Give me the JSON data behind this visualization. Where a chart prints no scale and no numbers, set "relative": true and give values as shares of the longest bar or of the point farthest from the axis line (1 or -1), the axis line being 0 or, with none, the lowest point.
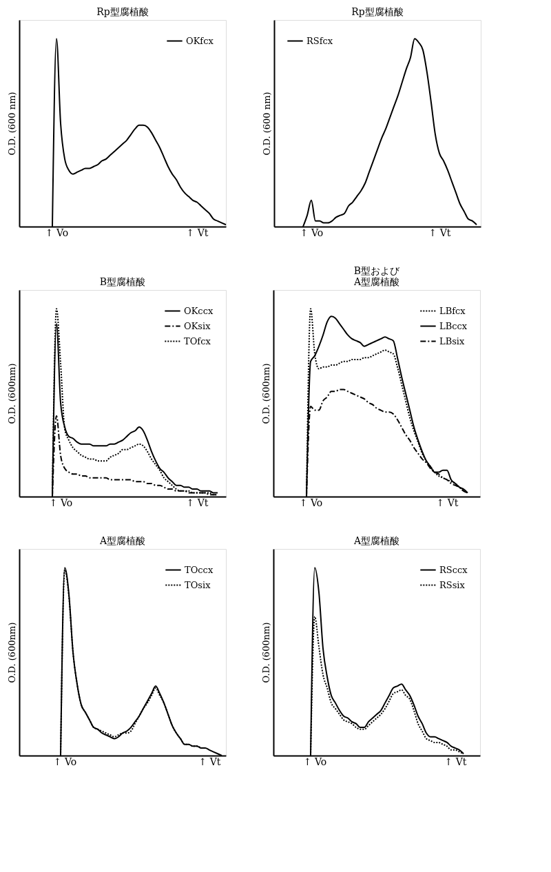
{
  "chart_data": [
    {
      "type": "line",
      "title": "Rp型腐植酸",
      "ylabel": "O.D. (600 nm)",
      "relative": true,
      "tick_labels": "x",
      "grid": false,
      "legend": "top right",
      "categories": [
        null,
        null,
        null,
        null,
        null,
        null,
        null,
        null,
        null,
        "↑ Vo",
        null,
        null,
        null,
        null,
        null,
        null,
        null,
        null,
        null,
        null,
        null,
        null,
        null,
        null,
        null,
        null,
        null,
        null,
        null,
        null,
        null,
        null,
        null,
        null,
        null,
        null,
        null,
        null,
        null,
        null,
        null,
        null,
        null,
        "↑ Vt",
        null,
        null,
        null,
        null,
        null,
        null,
        null
      ],
      "series": [
        {
          "name": "OKfcx",
          "color": "#000000",
          "line_style": "solid",
          "values": [
            null,
            null,
            null,
            null,
            null,
            null,
            null,
            null,
            0,
            1,
            0.55,
            0.36,
            0.3,
            0.28,
            0.29,
            0.3,
            0.31,
            0.31,
            0.32,
            0.33,
            0.35,
            0.36,
            0.38,
            0.4,
            0.42,
            0.44,
            0.46,
            0.49,
            0.52,
            0.54,
            0.54,
            0.53,
            0.5,
            0.46,
            0.42,
            0.37,
            0.32,
            0.28,
            0.25,
            0.21,
            0.18,
            0.16,
            0.14,
            0.13,
            0.11,
            0.09,
            0.07,
            0.04,
            0.03,
            0.02,
            0.01
          ]
        }
      ]
    },
    {
      "type": "line",
      "title": "Rp型腐植酸",
      "ylabel": "O.D. (600 nm)",
      "relative": true,
      "tick_labels": "x",
      "grid": false,
      "legend": "top left",
      "categories": [
        null,
        null,
        null,
        null,
        null,
        null,
        null,
        null,
        null,
        "↑ Vo",
        null,
        null,
        null,
        null,
        null,
        null,
        null,
        null,
        null,
        null,
        null,
        null,
        null,
        null,
        null,
        null,
        null,
        null,
        null,
        null,
        null,
        null,
        null,
        null,
        null,
        null,
        null,
        null,
        null,
        null,
        "↑ Vt",
        null,
        null,
        null,
        null,
        null,
        null,
        null,
        null,
        null,
        null
      ],
      "series": [
        {
          "name": "RSfcx",
          "color": "#000000",
          "line_style": "solid",
          "values": [
            null,
            null,
            null,
            null,
            null,
            null,
            null,
            0,
            0.06,
            0.14,
            0.03,
            0.03,
            0.02,
            0.02,
            0.03,
            0.05,
            0.06,
            0.07,
            0.11,
            0.13,
            0.16,
            0.19,
            0.23,
            0.29,
            0.35,
            0.41,
            0.47,
            0.52,
            0.58,
            0.64,
            0.7,
            0.77,
            0.84,
            0.9,
            1,
            0.98,
            0.94,
            0.82,
            0.66,
            0.49,
            0.39,
            0.35,
            0.3,
            0.24,
            0.18,
            0.12,
            0.08,
            0.04,
            0.03,
            0.01,
            null
          ]
        }
      ]
    },
    {
      "type": "line",
      "title": "B型腐植酸",
      "ylabel": "O.D. (600nm)",
      "relative": true,
      "tick_labels": "x",
      "grid": false,
      "legend": "top right",
      "categories": [
        null,
        null,
        null,
        null,
        null,
        null,
        null,
        null,
        null,
        null,
        "↑ Vo",
        null,
        null,
        null,
        null,
        null,
        null,
        null,
        null,
        null,
        null,
        null,
        null,
        null,
        null,
        null,
        null,
        null,
        null,
        null,
        null,
        null,
        null,
        null,
        null,
        null,
        null,
        null,
        null,
        null,
        null,
        null,
        null,
        "↑ Vt",
        null,
        null,
        null,
        null,
        null,
        null,
        null
      ],
      "series": [
        {
          "name": "OKccx",
          "color": "#000000",
          "line_style": "solid",
          "values": [
            null,
            null,
            null,
            null,
            null,
            null,
            null,
            null,
            0,
            0.92,
            0.5,
            0.37,
            0.32,
            0.31,
            0.29,
            0.28,
            0.28,
            0.28,
            0.27,
            0.27,
            0.27,
            0.27,
            0.28,
            0.28,
            0.29,
            0.3,
            0.32,
            0.34,
            0.35,
            0.37,
            0.35,
            0.3,
            0.24,
            0.19,
            0.15,
            0.13,
            0.1,
            0.08,
            0.06,
            0.06,
            0.05,
            0.05,
            0.04,
            0.04,
            0.03,
            0.03,
            0.03,
            0.02,
            0.02,
            null,
            null
          ]
        },
        {
          "name": "OKsix",
          "color": "#000000",
          "line_style": "dashdot",
          "values": [
            null,
            null,
            null,
            null,
            null,
            null,
            null,
            null,
            0,
            0.43,
            0.22,
            0.15,
            0.13,
            0.12,
            0.12,
            0.11,
            0.11,
            0.1,
            0.1,
            0.1,
            0.1,
            0.1,
            0.09,
            0.09,
            0.09,
            0.09,
            0.09,
            0.09,
            0.08,
            0.08,
            0.08,
            0.07,
            0.07,
            0.06,
            0.06,
            0.05,
            0.04,
            0.04,
            0.03,
            0.03,
            0.03,
            0.02,
            0.02,
            0.02,
            0.02,
            0.02,
            0.01,
            0.01,
            0.01,
            null,
            null
          ]
        },
        {
          "name": "TOfcx",
          "color": "#000000",
          "line_style": "dotted",
          "values": [
            null,
            null,
            null,
            null,
            null,
            null,
            null,
            null,
            0,
            1,
            0.71,
            0.36,
            0.3,
            0.26,
            0.24,
            0.22,
            0.21,
            0.2,
            0.2,
            0.19,
            0.19,
            0.19,
            0.21,
            0.22,
            0.23,
            0.25,
            0.25,
            0.26,
            0.27,
            0.28,
            0.27,
            0.24,
            0.2,
            0.17,
            0.14,
            0.1,
            0.08,
            0.06,
            0.04,
            0.03,
            0.03,
            0.03,
            0.02,
            0.02,
            0.02,
            0.02,
            0.02,
            0.01,
            0.01,
            null,
            null
          ]
        }
      ]
    },
    {
      "type": "line",
      "title": "B型および\nA型腐植酸",
      "ylabel": "O.D. (600nm)",
      "relative": true,
      "tick_labels": "x",
      "grid": false,
      "legend": "top right",
      "categories": [
        null,
        null,
        null,
        null,
        null,
        null,
        null,
        null,
        null,
        "↑ Vo",
        null,
        null,
        null,
        null,
        null,
        null,
        null,
        null,
        null,
        null,
        null,
        null,
        null,
        null,
        null,
        null,
        null,
        null,
        null,
        null,
        null,
        null,
        null,
        null,
        null,
        null,
        null,
        null,
        null,
        null,
        null,
        null,
        "↑ Vt",
        null,
        null,
        null,
        null,
        null,
        null,
        null,
        null
      ],
      "series": [
        {
          "name": "LBfcx",
          "color": "#000000",
          "line_style": "dotted",
          "values": [
            null,
            null,
            null,
            null,
            null,
            null,
            null,
            null,
            0,
            1,
            0.76,
            0.68,
            0.69,
            0.69,
            0.7,
            0.7,
            0.71,
            0.72,
            0.72,
            0.73,
            0.73,
            0.73,
            0.74,
            0.74,
            0.75,
            0.76,
            0.77,
            0.78,
            0.77,
            0.76,
            0.69,
            0.6,
            0.51,
            0.42,
            0.35,
            0.29,
            0.23,
            0.19,
            0.16,
            0.13,
            0.11,
            0.1,
            0.09,
            0.08,
            0.07,
            0.05,
            0.03,
            null,
            null,
            null,
            null
          ]
        },
        {
          "name": "LBccx",
          "color": "#000000",
          "line_style": "solid",
          "values": [
            null,
            null,
            null,
            null,
            null,
            null,
            null,
            null,
            0,
            0.72,
            0.75,
            0.8,
            0.86,
            0.93,
            0.96,
            0.95,
            0.92,
            0.89,
            0.86,
            0.84,
            0.83,
            0.82,
            0.8,
            0.81,
            0.82,
            0.83,
            0.84,
            0.85,
            0.84,
            0.83,
            0.74,
            0.64,
            0.55,
            0.46,
            0.37,
            0.3,
            0.24,
            0.19,
            0.16,
            0.13,
            0.13,
            0.14,
            0.14,
            0.09,
            0.07,
            0.05,
            0.04,
            0.02,
            null,
            null,
            null
          ]
        },
        {
          "name": "LBsix",
          "color": "#000000",
          "line_style": "dashdot",
          "values": [
            null,
            null,
            null,
            null,
            null,
            null,
            null,
            null,
            0,
            0.48,
            0.46,
            0.46,
            0.51,
            0.53,
            0.56,
            0.56,
            0.57,
            0.57,
            0.56,
            0.55,
            0.54,
            0.53,
            0.52,
            0.5,
            0.49,
            0.47,
            0.46,
            0.45,
            0.45,
            0.44,
            0.41,
            0.37,
            0.33,
            0.3,
            0.26,
            0.23,
            0.2,
            0.18,
            0.15,
            0.13,
            0.12,
            0.1,
            0.09,
            0.07,
            0.06,
            0.05,
            0.03,
            0.02,
            null,
            null,
            null
          ]
        }
      ]
    },
    {
      "type": "line",
      "title": "A型腐植酸",
      "ylabel": "O.D. (600nm)",
      "relative": true,
      "tick_labels": "x",
      "grid": false,
      "legend": "top right",
      "categories": [
        null,
        null,
        null,
        null,
        null,
        null,
        null,
        null,
        null,
        null,
        null,
        "↑ Vo",
        null,
        null,
        null,
        null,
        null,
        null,
        null,
        null,
        null,
        null,
        null,
        null,
        null,
        null,
        null,
        null,
        null,
        null,
        null,
        null,
        null,
        null,
        null,
        null,
        null,
        null,
        null,
        null,
        null,
        null,
        null,
        null,
        null,
        null,
        "↑ Vt",
        null,
        null,
        null,
        null
      ],
      "series": [
        {
          "name": "TOccx",
          "color": "#000000",
          "line_style": "solid",
          "values": [
            null,
            null,
            null,
            null,
            null,
            null,
            null,
            null,
            null,
            null,
            0,
            1,
            0.86,
            0.55,
            0.38,
            0.27,
            0.23,
            0.19,
            0.15,
            0.14,
            0.12,
            0.11,
            0.1,
            0.09,
            0.1,
            0.12,
            0.13,
            0.15,
            0.18,
            0.21,
            0.25,
            0.29,
            0.33,
            0.37,
            0.33,
            0.28,
            0.22,
            0.16,
            0.12,
            0.09,
            0.06,
            0.06,
            0.05,
            0.05,
            0.04,
            0.04,
            0.03,
            0.02,
            0.01,
            0,
            null
          ]
        },
        {
          "name": "TOsix",
          "color": "#000000",
          "line_style": "dotted",
          "values": [
            null,
            null,
            null,
            null,
            null,
            null,
            null,
            null,
            null,
            null,
            0,
            0.99,
            0.85,
            0.55,
            0.38,
            0.27,
            0.23,
            0.19,
            0.15,
            0.14,
            0.13,
            0.12,
            0.11,
            0.1,
            0.11,
            0.12,
            0.12,
            0.13,
            0.17,
            0.21,
            0.25,
            0.28,
            0.32,
            0.36,
            0.32,
            0.28,
            0.22,
            0.16,
            0.12,
            0.09,
            0.06,
            0.06,
            0.05,
            0.05,
            0.04,
            null,
            null,
            null,
            null,
            null,
            null
          ]
        }
      ]
    },
    {
      "type": "line",
      "title": "A型腐植酸",
      "ylabel": "O.D. (600nm)",
      "relative": true,
      "tick_labels": "x",
      "grid": false,
      "legend": "top right",
      "categories": [
        null,
        null,
        null,
        null,
        null,
        null,
        null,
        null,
        null,
        null,
        "↑ Vo",
        null,
        null,
        null,
        null,
        null,
        null,
        null,
        null,
        null,
        null,
        null,
        null,
        null,
        null,
        null,
        null,
        null,
        null,
        null,
        null,
        null,
        null,
        null,
        null,
        null,
        null,
        null,
        null,
        null,
        null,
        null,
        null,
        null,
        "↑ Vt",
        null,
        null,
        null,
        null,
        null,
        null
      ],
      "series": [
        {
          "name": "RSccx",
          "color": "#000000",
          "line_style": "solid",
          "values": [
            null,
            null,
            null,
            null,
            null,
            null,
            null,
            null,
            null,
            0,
            1,
            0.87,
            0.57,
            0.42,
            0.32,
            0.28,
            0.24,
            0.21,
            0.2,
            0.18,
            0.17,
            0.15,
            0.15,
            0.18,
            0.2,
            0.22,
            0.24,
            0.28,
            0.32,
            0.36,
            0.37,
            0.38,
            0.35,
            0.32,
            0.27,
            0.21,
            0.17,
            0.12,
            0.1,
            0.1,
            0.09,
            0.08,
            0.07,
            0.05,
            0.04,
            0.03,
            0.01,
            null,
            null,
            null,
            null
          ]
        },
        {
          "name": "RSsix",
          "color": "#000000",
          "line_style": "dotted",
          "values": [
            null,
            null,
            null,
            null,
            null,
            null,
            null,
            null,
            null,
            0,
            0.74,
            0.58,
            0.43,
            0.36,
            0.28,
            0.25,
            0.22,
            0.19,
            0.18,
            0.17,
            0.15,
            0.14,
            0.14,
            0.16,
            0.18,
            0.2,
            0.22,
            0.25,
            0.29,
            0.33,
            0.34,
            0.35,
            0.32,
            0.3,
            0.24,
            0.17,
            0.13,
            0.09,
            0.08,
            0.07,
            0.07,
            0.06,
            0.05,
            0.03,
            0.03,
            0.02,
            0.01,
            null,
            null,
            null,
            null
          ]
        }
      ]
    }
  ]
}
